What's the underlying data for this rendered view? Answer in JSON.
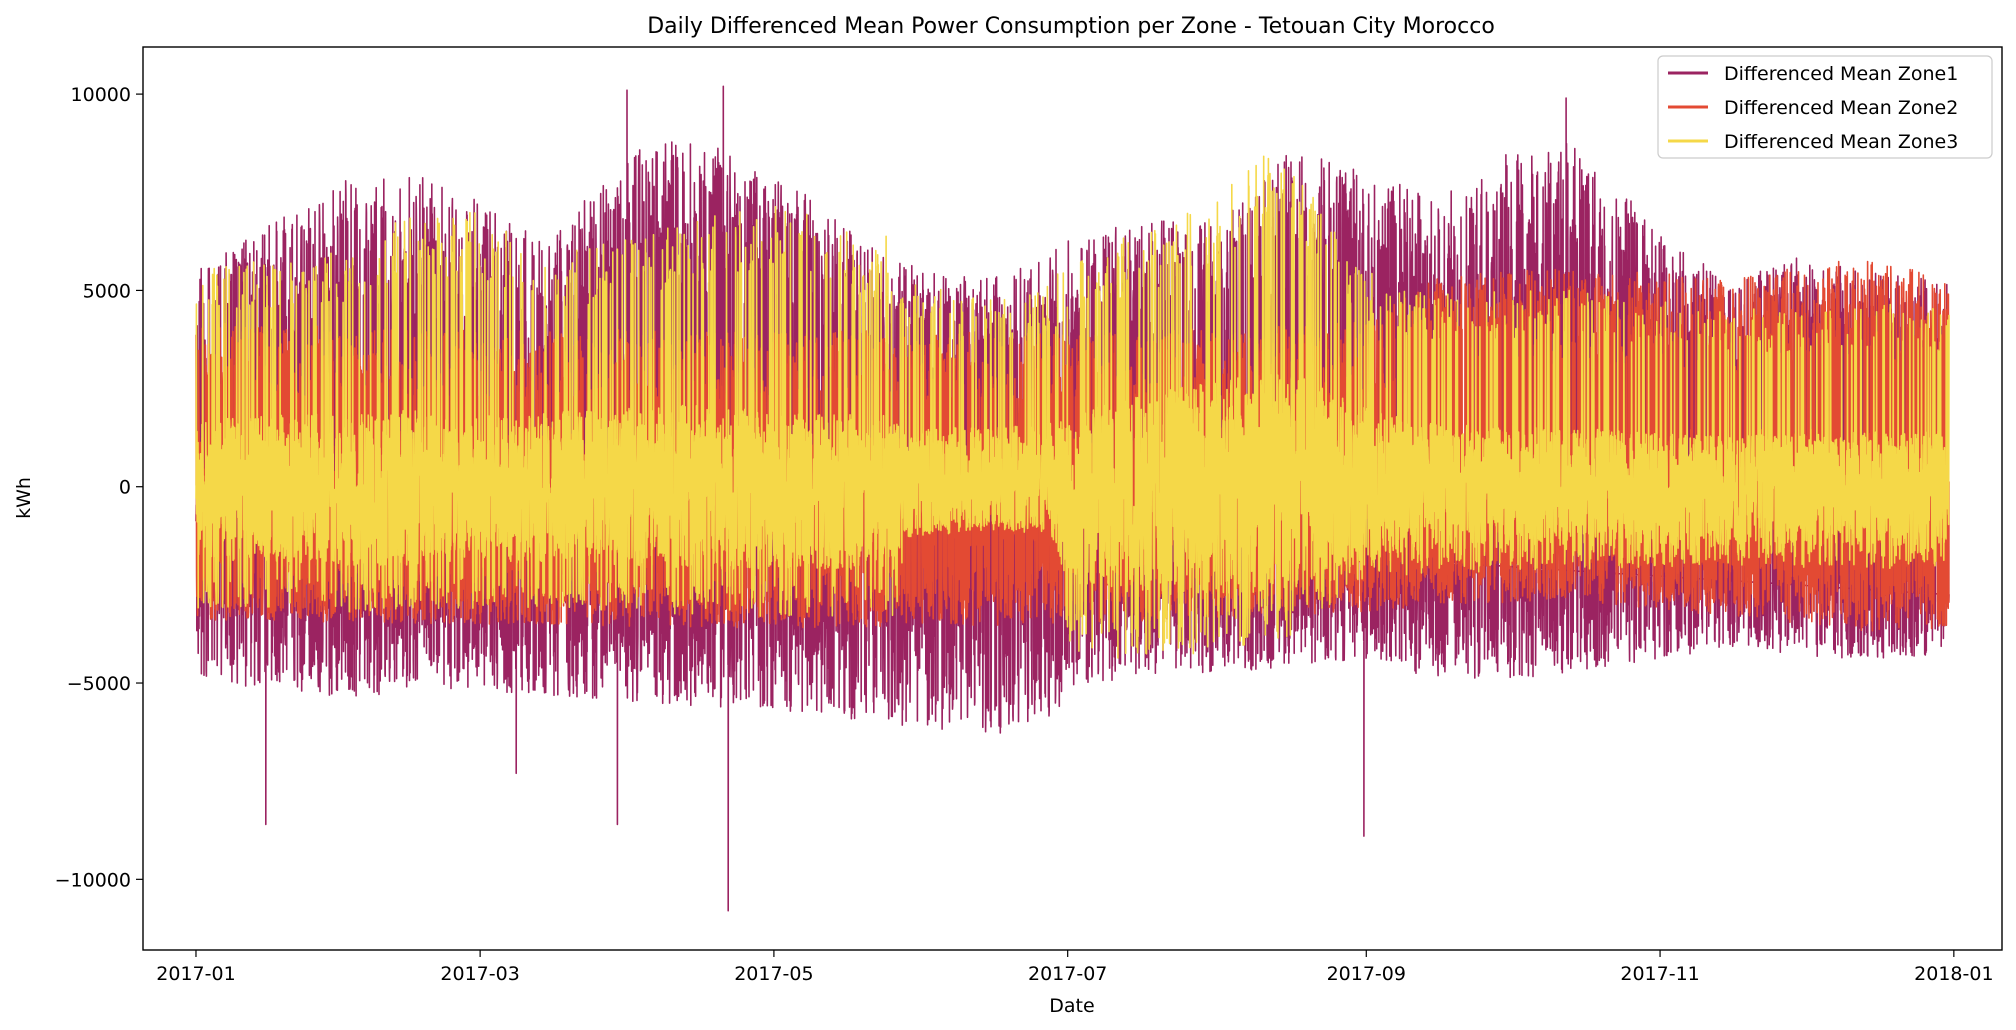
{
  "chart_data": {
    "type": "line",
    "title": "Daily Differenced Mean Power Consumption per Zone - Tetouan City Morocco",
    "xlabel": "Date",
    "ylabel": "kWh",
    "x_range": [
      "2016-12-21",
      "2018-01-11"
    ],
    "ylim": [
      -11800,
      11200
    ],
    "x_ticks": [
      "2017-01",
      "2017-03",
      "2017-05",
      "2017-07",
      "2017-09",
      "2017-11",
      "2018-01"
    ],
    "y_ticks": [
      -10000,
      -5000,
      0,
      5000,
      10000
    ],
    "y_tick_labels": [
      "−10000",
      "−5000",
      "0",
      "5000",
      "10000"
    ],
    "grid": false,
    "legend_position": "top-right",
    "x_start": "2017-01-01",
    "x_end": "2017-12-31",
    "series": [
      {
        "name": "Differenced Mean Zone1",
        "color": "#9b2361",
        "envelope_x": [
          "2017-01-01",
          "2017-01-15",
          "2017-02-01",
          "2017-02-15",
          "2017-03-01",
          "2017-03-15",
          "2017-04-01",
          "2017-04-15",
          "2017-05-01",
          "2017-05-15",
          "2017-06-01",
          "2017-06-15",
          "2017-06-26",
          "2017-07-01",
          "2017-07-15",
          "2017-08-01",
          "2017-08-15",
          "2017-09-01",
          "2017-09-15",
          "2017-10-01",
          "2017-10-15",
          "2017-11-01",
          "2017-11-15",
          "2017-12-01",
          "2017-12-15",
          "2017-12-31"
        ],
        "upper": [
          5500,
          6600,
          7800,
          8000,
          7300,
          6300,
          8600,
          9000,
          8000,
          6800,
          5500,
          5300,
          5800,
          6400,
          6900,
          6700,
          8500,
          8300,
          7300,
          8600,
          8800,
          6600,
          5200,
          5900,
          5500,
          5200
        ],
        "lower": [
          -4800,
          -5200,
          -5400,
          -5300,
          -5200,
          -5300,
          -5500,
          -5600,
          -5700,
          -5900,
          -6200,
          -6300,
          -6400,
          -5200,
          -4800,
          -4800,
          -4600,
          -4400,
          -4900,
          -4900,
          -4700,
          -4400,
          -4100,
          -4300,
          -4400,
          -4300
        ],
        "spikes": [
          {
            "x": "2017-01-15",
            "y": -8600
          },
          {
            "x": "2017-03-08",
            "y": -7300
          },
          {
            "x": "2017-03-29",
            "y": -8600
          },
          {
            "x": "2017-04-21",
            "y": -10800
          },
          {
            "x": "2017-08-31",
            "y": -8900
          },
          {
            "x": "2017-04-20",
            "y": 10200
          },
          {
            "x": "2017-03-31",
            "y": 10100
          },
          {
            "x": "2017-10-12",
            "y": 9900
          }
        ]
      },
      {
        "name": "Differenced Mean Zone2",
        "color": "#e34a33",
        "envelope_x": [
          "2017-01-01",
          "2017-03-01",
          "2017-05-01",
          "2017-07-01",
          "2017-09-01",
          "2017-09-15",
          "2017-10-15",
          "2017-11-15",
          "2017-12-15",
          "2017-12-31"
        ],
        "upper": [
          4200,
          4000,
          4000,
          3900,
          4200,
          5400,
          5600,
          5300,
          5900,
          5200
        ],
        "lower": [
          -3400,
          -3500,
          -3600,
          -3500,
          -3200,
          -3000,
          -2900,
          -3300,
          -3700,
          -3600
        ]
      },
      {
        "name": "Differenced Mean Zone3",
        "color": "#f5d848",
        "envelope_x": [
          "2017-01-01",
          "2017-01-15",
          "2017-02-01",
          "2017-02-15",
          "2017-03-01",
          "2017-03-15",
          "2017-04-01",
          "2017-04-15",
          "2017-05-01",
          "2017-05-27",
          "2017-05-28",
          "2017-06-15",
          "2017-06-27",
          "2017-07-01",
          "2017-07-15",
          "2017-08-01",
          "2017-08-15",
          "2017-09-01",
          "2017-09-15",
          "2017-10-15",
          "2017-11-15",
          "2017-12-15",
          "2017-12-31"
        ],
        "upper": [
          5600,
          5800,
          6200,
          6900,
          7000,
          5900,
          6400,
          6900,
          7200,
          6300,
          5200,
          5000,
          5300,
          5600,
          6500,
          7400,
          8900,
          5600,
          4900,
          5100,
          4500,
          4700,
          4500
        ],
        "lower": [
          -3200,
          -3100,
          -3200,
          -3100,
          -3100,
          -3100,
          -3200,
          -3300,
          -3300,
          -3300,
          -1300,
          -1100,
          -1200,
          -4300,
          -4400,
          -4200,
          -3900,
          -2300,
          -2200,
          -2100,
          -2000,
          -2100,
          -2000
        ],
        "core_upper": [
          1700,
          1800,
          1900,
          2000,
          1800,
          1900,
          2000,
          2100,
          1900,
          1800,
          1500,
          1500,
          1600,
          1800,
          2300,
          2700,
          3000,
          2000,
          1600,
          1500,
          1300,
          1400,
          1400
        ],
        "core_lower": [
          -1900,
          -1900,
          -2000,
          -2000,
          -2000,
          -1900,
          -2000,
          -2100,
          -2100,
          -2100,
          -1200,
          -1000,
          -1100,
          -2500,
          -2700,
          -2800,
          -2700,
          -1800,
          -1600,
          -1500,
          -1500,
          -1500,
          -1500
        ]
      }
    ]
  }
}
